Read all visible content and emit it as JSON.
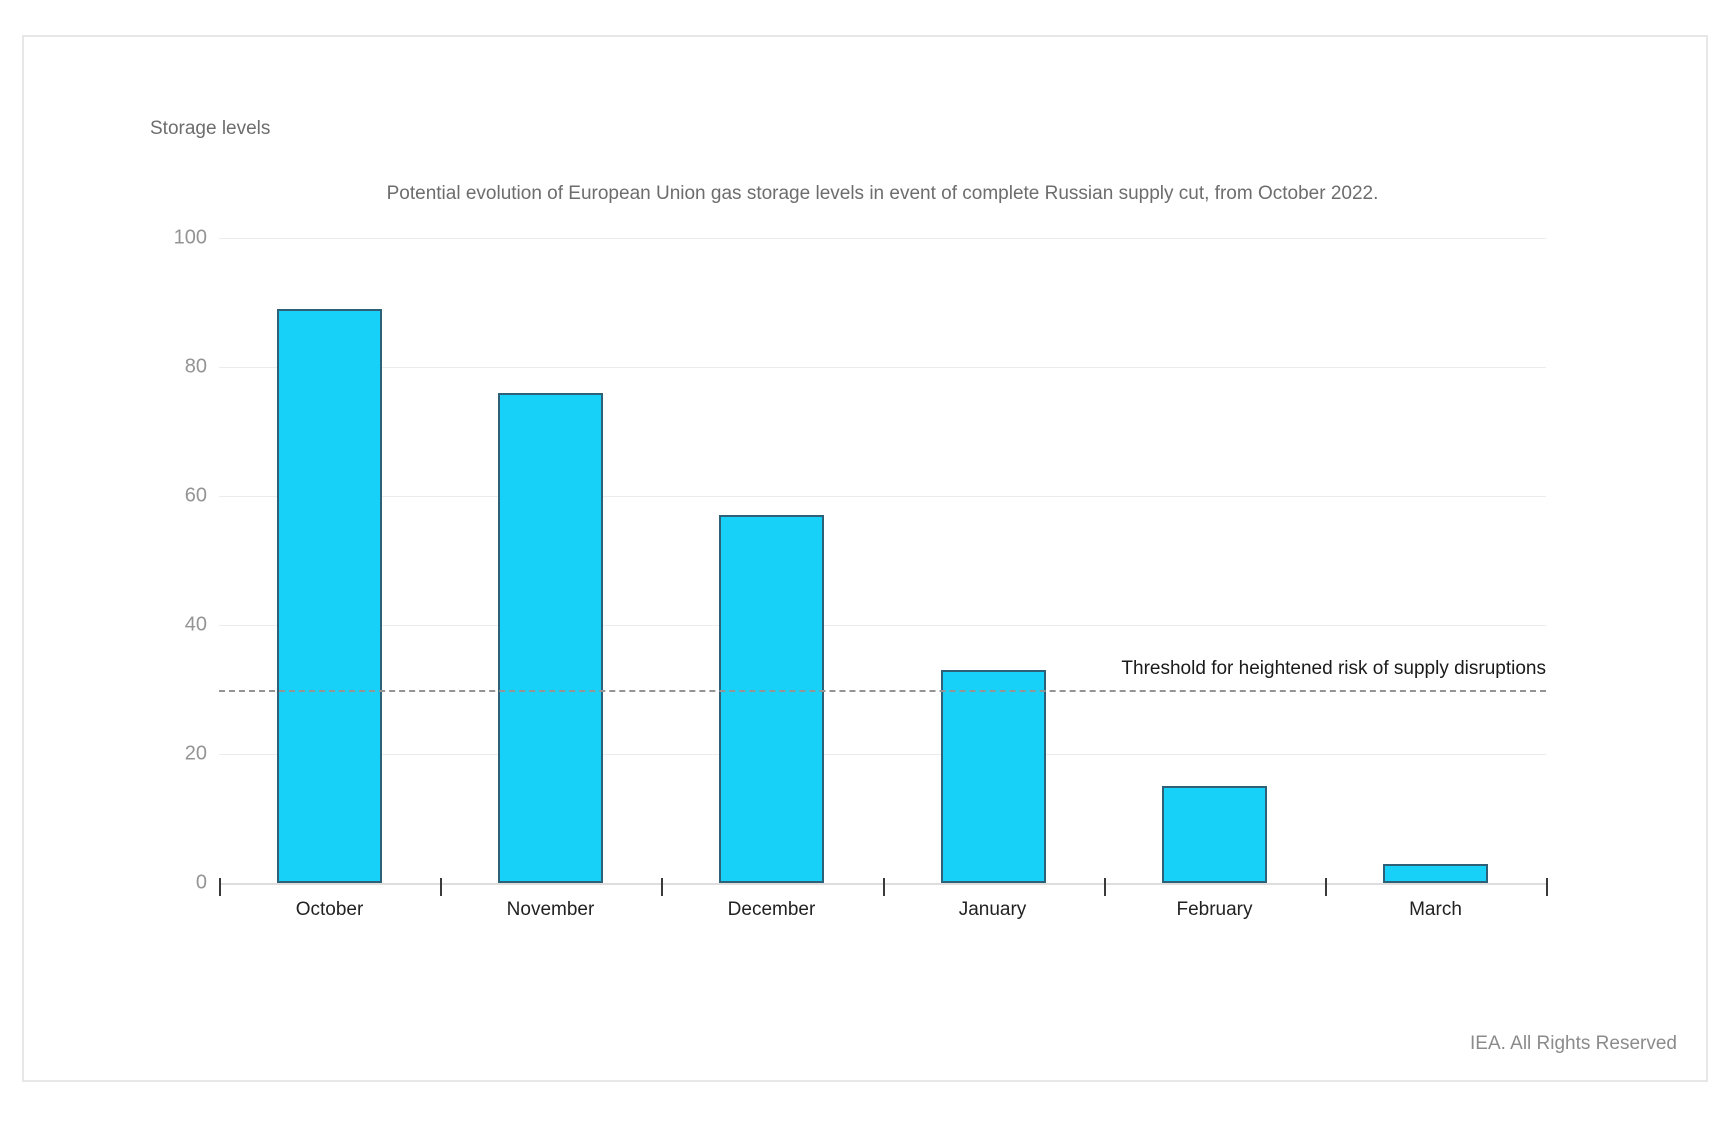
{
  "page": {
    "footer": "IEA. All Rights Reserved"
  },
  "chart_data": {
    "type": "bar",
    "title": "Potential evolution of European Union gas storage levels in event of complete Russian supply cut, from October 2022.",
    "ylabel": "Storage levels",
    "xlabel": "",
    "categories": [
      "October",
      "November",
      "December",
      "January",
      "February",
      "March"
    ],
    "values": [
      89,
      76,
      57,
      33,
      15,
      3
    ],
    "ylim": [
      0,
      100
    ],
    "yticks": [
      0,
      20,
      40,
      60,
      80,
      100
    ],
    "grid": true,
    "legend": "none",
    "bar_color": "#18d1f8",
    "bar_border_color": "#2e6077",
    "threshold": {
      "value": 30,
      "label": "Threshold for heightened risk of supply disruptions",
      "line_style": "dashed",
      "line_color": "#949494"
    }
  }
}
